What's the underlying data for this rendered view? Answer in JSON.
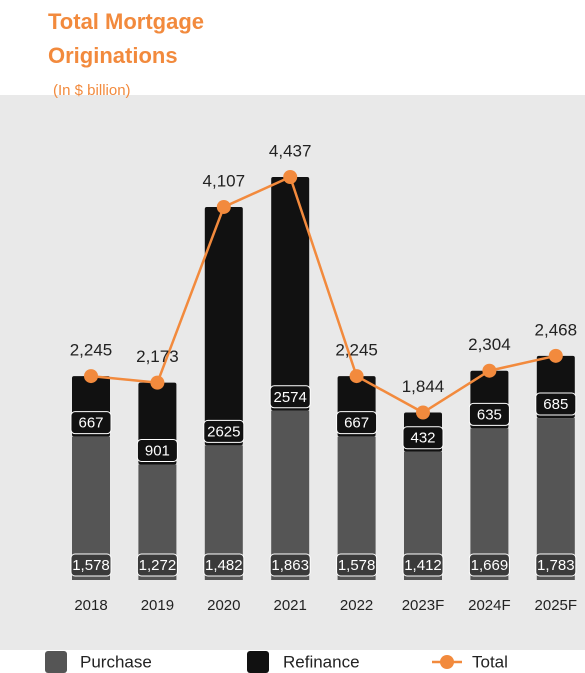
{
  "chart_data": {
    "type": "bar",
    "stacked": true,
    "title": "Total Mortgage Originations",
    "subtitle": "(In $ billion)",
    "categories": [
      "2018",
      "2019",
      "2020",
      "2021",
      "2022",
      "2023F",
      "2024F",
      "2025F"
    ],
    "series": [
      {
        "name": "Purchase",
        "color": "#555555",
        "values": [
          1578,
          1272,
          1482,
          1863,
          1578,
          1412,
          1669,
          1783
        ],
        "value_labels": [
          "1,578",
          "1,272",
          "1,482",
          "1,863",
          "1,578",
          "1,412",
          "1,669",
          "1,783"
        ]
      },
      {
        "name": "Refinance",
        "color": "#111111",
        "values": [
          667,
          901,
          2625,
          2574,
          667,
          432,
          635,
          685
        ]
      },
      {
        "name": "Total",
        "type": "line",
        "color": "#f28a3d",
        "values": [
          2245,
          2173,
          4107,
          4437,
          2245,
          1844,
          2304,
          2468
        ],
        "value_labels": [
          "2,245",
          "2,173",
          "4,107",
          "4,437",
          "2,245",
          "1,844",
          "2,304",
          "2,468"
        ]
      }
    ]
  }
}
